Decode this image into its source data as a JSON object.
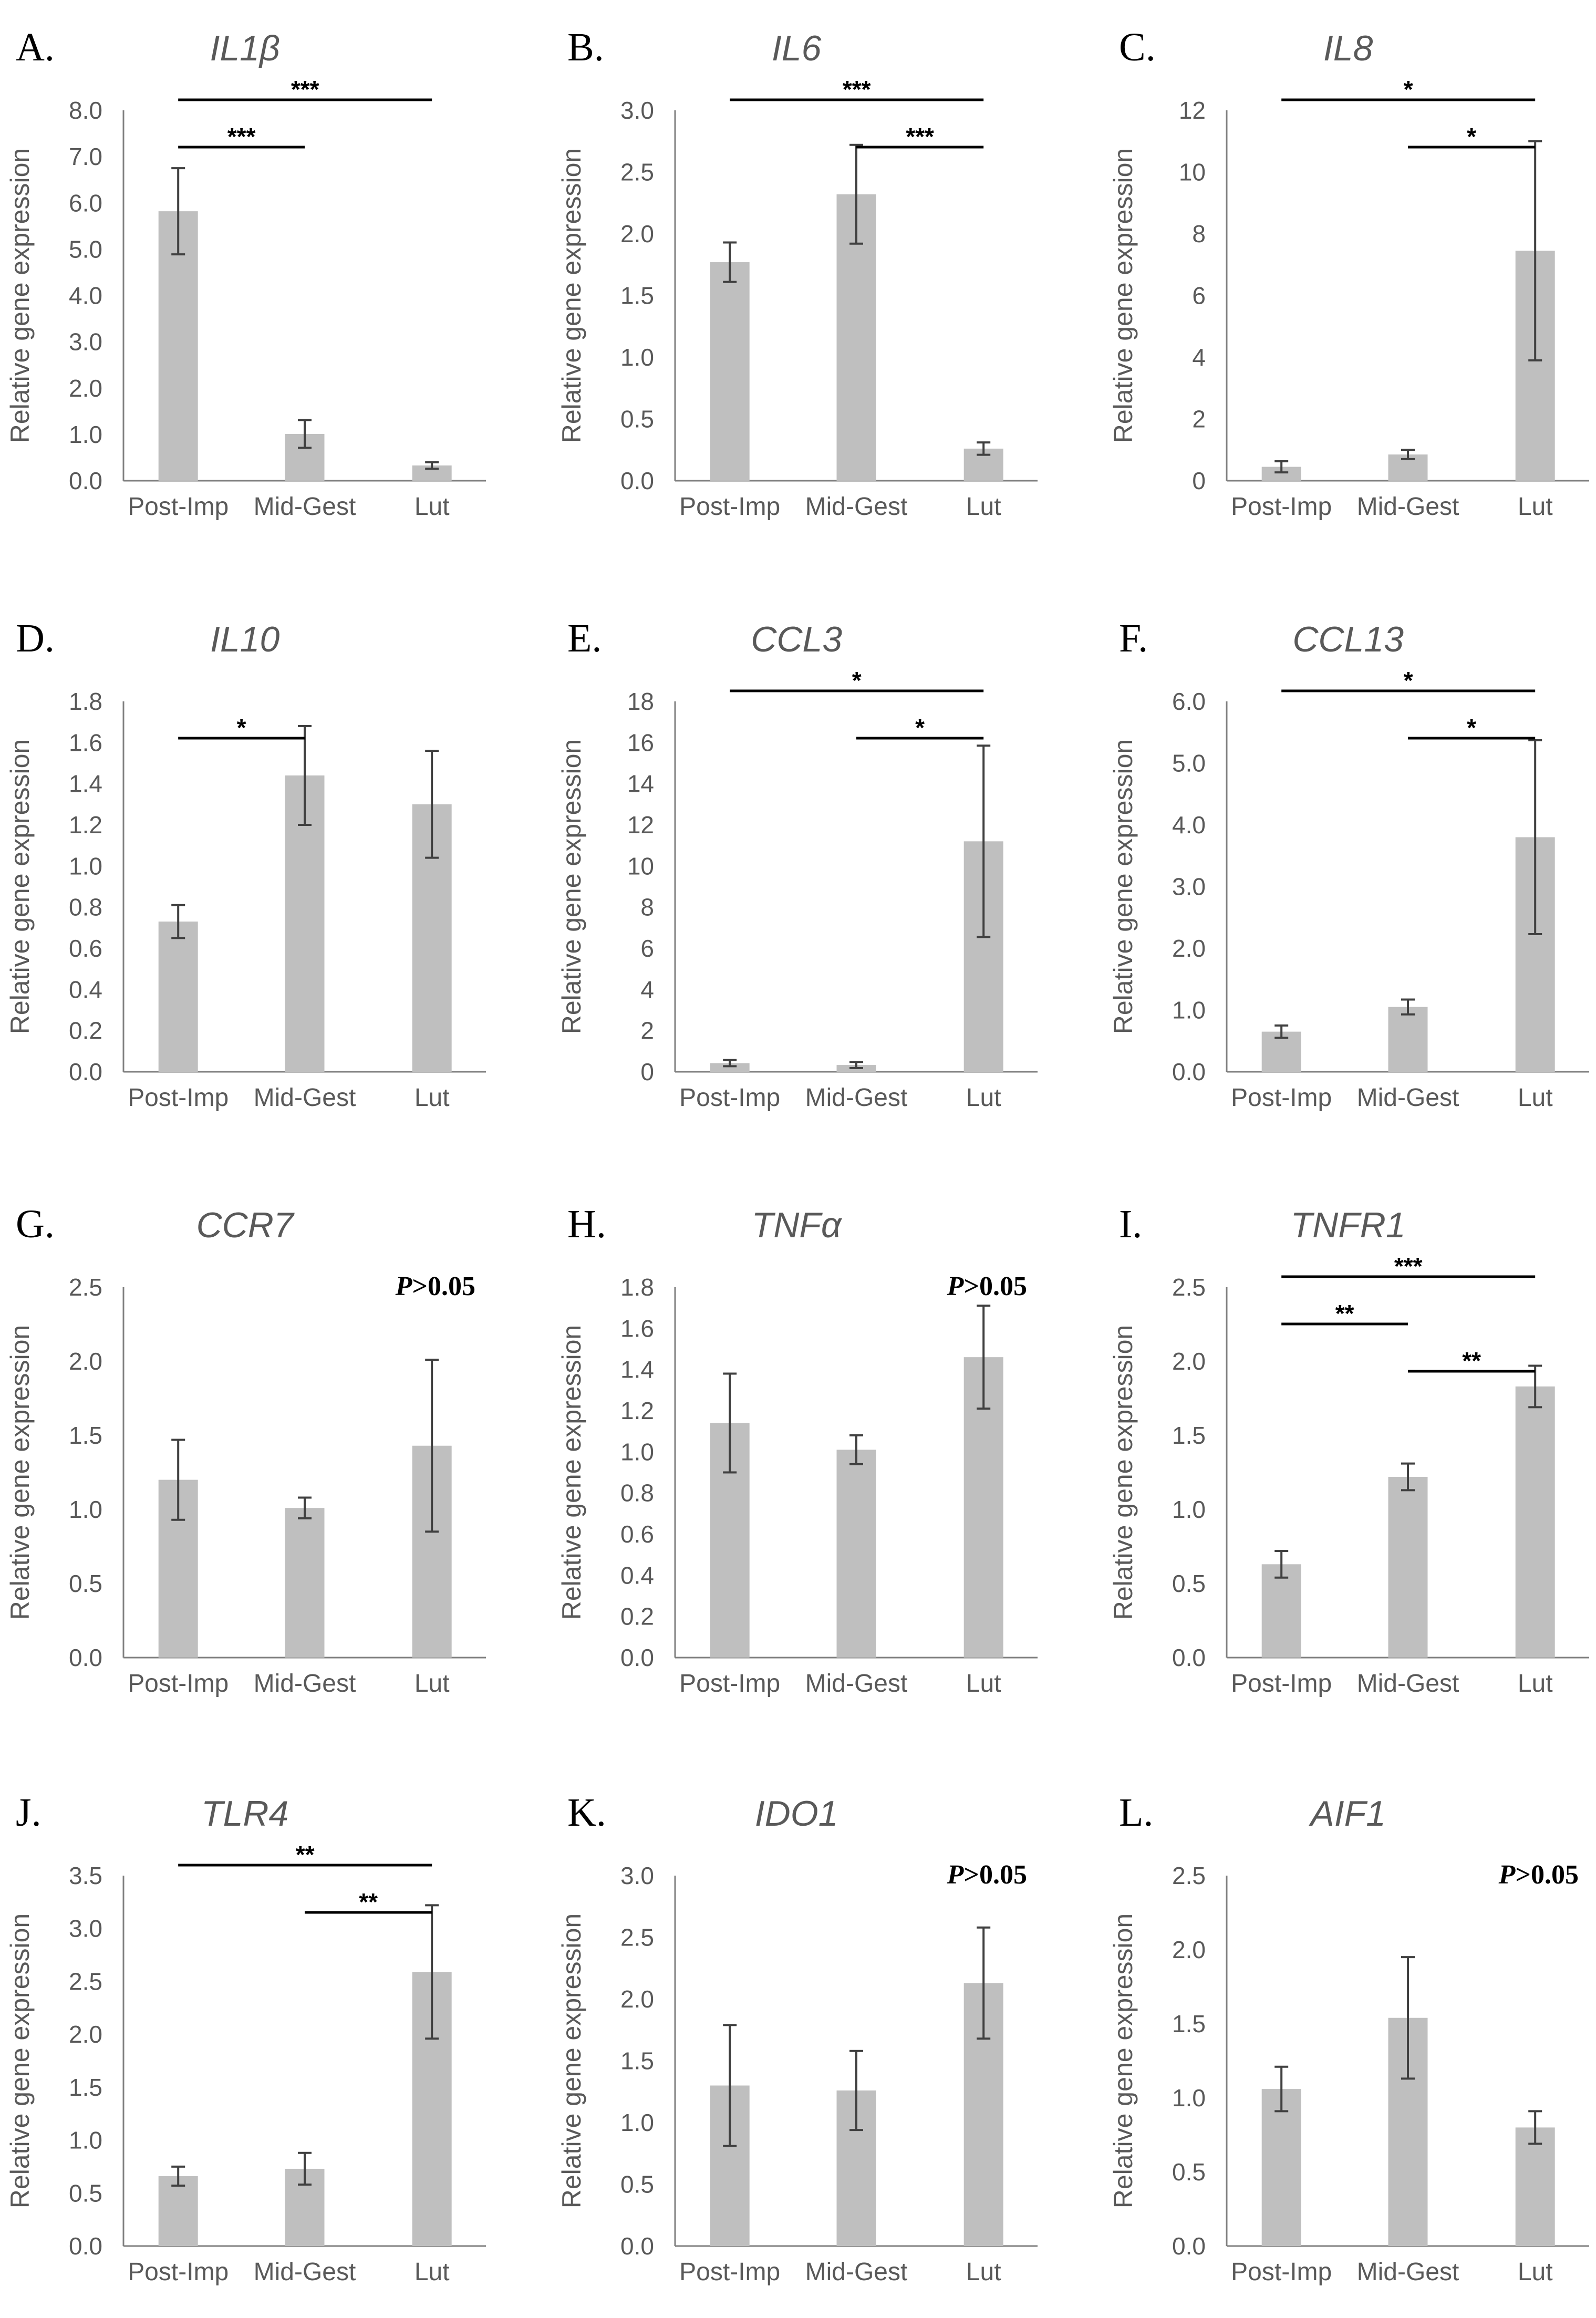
{
  "figure": {
    "bar_color": "#bfbfbf",
    "errorbar_color": "#404040",
    "axis_color": "#7f7f7f",
    "text_color": "#595959",
    "sig_color": "#000000"
  },
  "chart_data": [
    {
      "panel": "A.",
      "title": "IL1β",
      "type": "bar",
      "ylabel": "Relative gene expression",
      "categories": [
        "Post-Imp",
        "Mid-Gest",
        "Lut"
      ],
      "values": [
        5.82,
        1.01,
        0.33
      ],
      "errors": [
        0.93,
        0.3,
        0.07
      ],
      "ylim": [
        0,
        8
      ],
      "yticks": [
        "0.0",
        "1.0",
        "2.0",
        "3.0",
        "4.0",
        "5.0",
        "6.0",
        "7.0",
        "8.0"
      ],
      "significance": [
        {
          "from": 0,
          "to": 1,
          "label": "***"
        },
        {
          "from": 0,
          "to": 2,
          "label": "***"
        }
      ],
      "pvalue_note": null
    },
    {
      "panel": "B.",
      "title": "IL6",
      "type": "bar",
      "ylabel": "Relative gene expression",
      "categories": [
        "Post-Imp",
        "Mid-Gest",
        "Lut"
      ],
      "values": [
        1.77,
        2.32,
        0.26
      ],
      "errors": [
        0.16,
        0.4,
        0.05
      ],
      "ylim": [
        0,
        3
      ],
      "yticks": [
        "0.0",
        "0.5",
        "1.0",
        "1.5",
        "2.0",
        "2.5",
        "3.0"
      ],
      "significance": [
        {
          "from": 0,
          "to": 2,
          "label": "***"
        },
        {
          "from": 1,
          "to": 2,
          "label": "***"
        }
      ],
      "pvalue_note": null
    },
    {
      "panel": "C.",
      "title": "IL8",
      "type": "bar",
      "ylabel": "Relative gene expression",
      "categories": [
        "Post-Imp",
        "Mid-Gest",
        "Lut"
      ],
      "values": [
        0.45,
        0.85,
        7.45
      ],
      "errors": [
        0.18,
        0.15,
        3.55
      ],
      "ylim": [
        0,
        12
      ],
      "yticks": [
        "0",
        "2",
        "4",
        "6",
        "8",
        "10",
        "12"
      ],
      "significance": [
        {
          "from": 0,
          "to": 2,
          "label": "*"
        },
        {
          "from": 1,
          "to": 2,
          "label": "*"
        }
      ],
      "pvalue_note": null
    },
    {
      "panel": "D.",
      "title": "IL10",
      "type": "bar",
      "ylabel": "Relative gene expression",
      "categories": [
        "Post-Imp",
        "Mid-Gest",
        "Lut"
      ],
      "values": [
        0.73,
        1.44,
        1.3
      ],
      "errors": [
        0.08,
        0.24,
        0.26
      ],
      "ylim": [
        0,
        1.8
      ],
      "yticks": [
        "0.0",
        "0.2",
        "0.4",
        "0.6",
        "0.8",
        "1.0",
        "1.2",
        "1.4",
        "1.6",
        "1.8"
      ],
      "significance": [
        {
          "from": 0,
          "to": 1,
          "label": "*"
        }
      ],
      "pvalue_note": null
    },
    {
      "panel": "E.",
      "title": "CCL3",
      "type": "bar",
      "ylabel": "Relative gene expression",
      "categories": [
        "Post-Imp",
        "Mid-Gest",
        "Lut"
      ],
      "values": [
        0.42,
        0.33,
        11.2
      ],
      "errors": [
        0.15,
        0.15,
        4.65
      ],
      "ylim": [
        0,
        18
      ],
      "yticks": [
        "0",
        "2",
        "4",
        "6",
        "8",
        "10",
        "12",
        "14",
        "16",
        "18"
      ],
      "significance": [
        {
          "from": 0,
          "to": 2,
          "label": "*"
        },
        {
          "from": 1,
          "to": 2,
          "label": "*"
        }
      ],
      "pvalue_note": null
    },
    {
      "panel": "F.",
      "title": "CCL13",
      "type": "bar",
      "ylabel": "Relative gene expression",
      "categories": [
        "Post-Imp",
        "Mid-Gest",
        "Lut"
      ],
      "values": [
        0.65,
        1.05,
        3.8
      ],
      "errors": [
        0.1,
        0.12,
        1.57
      ],
      "ylim": [
        0,
        6
      ],
      "yticks": [
        "0.0",
        "1.0",
        "2.0",
        "3.0",
        "4.0",
        "5.0",
        "6.0"
      ],
      "significance": [
        {
          "from": 0,
          "to": 2,
          "label": "*"
        },
        {
          "from": 1,
          "to": 2,
          "label": "*"
        }
      ],
      "pvalue_note": null
    },
    {
      "panel": "G.",
      "title": "CCR7",
      "type": "bar",
      "ylabel": "Relative gene expression",
      "categories": [
        "Post-Imp",
        "Mid-Gest",
        "Lut"
      ],
      "values": [
        1.2,
        1.01,
        1.43
      ],
      "errors": [
        0.27,
        0.07,
        0.58
      ],
      "ylim": [
        0,
        2.5
      ],
      "yticks": [
        "0.0",
        "0.5",
        "1.0",
        "1.5",
        "2.0",
        "2.5"
      ],
      "significance": [],
      "pvalue_note": {
        "p": "P",
        "rest": ">0.05"
      }
    },
    {
      "panel": "H.",
      "title": "TNFα",
      "type": "bar",
      "ylabel": "Relative gene expression",
      "categories": [
        "Post-Imp",
        "Mid-Gest",
        "Lut"
      ],
      "values": [
        1.14,
        1.01,
        1.46
      ],
      "errors": [
        0.24,
        0.07,
        0.25
      ],
      "ylim": [
        0,
        1.8
      ],
      "yticks": [
        "0.0",
        "0.2",
        "0.4",
        "0.6",
        "0.8",
        "1.0",
        "1.2",
        "1.4",
        "1.6",
        "1.8"
      ],
      "significance": [],
      "pvalue_note": {
        "p": "P",
        "rest": ">0.05"
      }
    },
    {
      "panel": "I.",
      "title": "TNFR1",
      "type": "bar",
      "ylabel": "Relative gene expression",
      "categories": [
        "Post-Imp",
        "Mid-Gest",
        "Lut"
      ],
      "values": [
        0.63,
        1.22,
        1.83
      ],
      "errors": [
        0.09,
        0.09,
        0.14
      ],
      "ylim": [
        0,
        2.5
      ],
      "yticks": [
        "0.0",
        "0.5",
        "1.0",
        "1.5",
        "2.0",
        "2.5"
      ],
      "significance": [
        {
          "from": 0,
          "to": 1,
          "label": "**"
        },
        {
          "from": 0,
          "to": 2,
          "label": "***"
        },
        {
          "from": 1,
          "to": 2,
          "label": "**"
        }
      ],
      "pvalue_note": null
    },
    {
      "panel": "J.",
      "title": "TLR4",
      "type": "bar",
      "ylabel": "Relative gene expression",
      "categories": [
        "Post-Imp",
        "Mid-Gest",
        "Lut"
      ],
      "values": [
        0.66,
        0.73,
        2.59
      ],
      "errors": [
        0.09,
        0.15,
        0.63
      ],
      "ylim": [
        0,
        3.5
      ],
      "yticks": [
        "0.0",
        "0.5",
        "1.0",
        "1.5",
        "2.0",
        "2.5",
        "3.0",
        "3.5"
      ],
      "significance": [
        {
          "from": 0,
          "to": 2,
          "label": "**"
        },
        {
          "from": 1,
          "to": 2,
          "label": "**"
        }
      ],
      "pvalue_note": null
    },
    {
      "panel": "K.",
      "title": "IDO1",
      "type": "bar",
      "ylabel": "Relative gene expression",
      "categories": [
        "Post-Imp",
        "Mid-Gest",
        "Lut"
      ],
      "values": [
        1.3,
        1.26,
        2.13
      ],
      "errors": [
        0.49,
        0.32,
        0.45
      ],
      "ylim": [
        0,
        3
      ],
      "yticks": [
        "0.0",
        "0.5",
        "1.0",
        "1.5",
        "2.0",
        "2.5",
        "3.0"
      ],
      "significance": [],
      "pvalue_note": {
        "p": "P",
        "rest": ">0.05"
      }
    },
    {
      "panel": "L.",
      "title": "AIF1",
      "type": "bar",
      "ylabel": "Relative gene expression",
      "categories": [
        "Post-Imp",
        "Mid-Gest",
        "Lut"
      ],
      "values": [
        1.06,
        1.54,
        0.8
      ],
      "errors": [
        0.15,
        0.41,
        0.11
      ],
      "ylim": [
        0,
        2.5
      ],
      "yticks": [
        "0.0",
        "0.5",
        "1.0",
        "1.5",
        "2.0",
        "2.5"
      ],
      "significance": [],
      "pvalue_note": {
        "p": "P",
        "rest": ">0.05"
      }
    }
  ]
}
